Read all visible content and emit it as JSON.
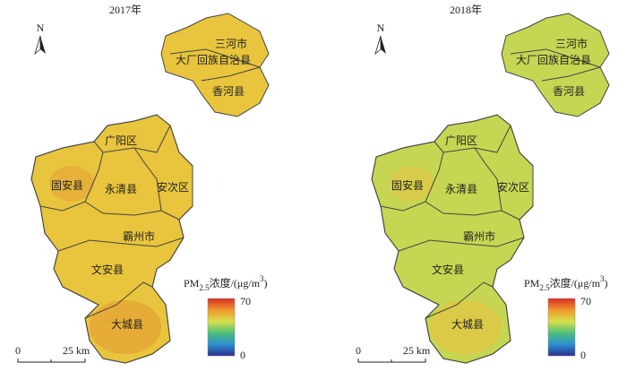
{
  "panels": [
    {
      "title": "2017年",
      "map_color": "#e8c53c",
      "hot_color": "#e69a35",
      "regions": [
        "三河市",
        "大厂回族自治县",
        "香河县",
        "广阳区",
        "固安县",
        "永清县",
        "安次区",
        "霸州市",
        "文安县",
        "大城县"
      ],
      "north": "N",
      "scale": {
        "start": "0",
        "end": "25 km"
      },
      "legend": {
        "title": {
          "main": "PM",
          "sub": "2.5",
          "mid": "浓度/(μg/m",
          "sup": "3",
          "end": ")"
        },
        "max": 70,
        "min": 0
      }
    },
    {
      "title": "2018年",
      "map_color": "#c6d653",
      "hot_color": "#e9c23f",
      "regions": [
        "三河市",
        "大厂回族自治县",
        "香河县",
        "广阳区",
        "固安县",
        "永清县",
        "安次区",
        "霸州市",
        "文安县",
        "大城县"
      ],
      "north": "N",
      "scale": {
        "start": "0",
        "end": "25 km"
      },
      "legend": {
        "title": {
          "main": "PM",
          "sub": "2.5",
          "mid": "浓度/(μg/m",
          "sup": "3",
          "end": ")"
        },
        "max": 70,
        "min": 0
      }
    }
  ]
}
